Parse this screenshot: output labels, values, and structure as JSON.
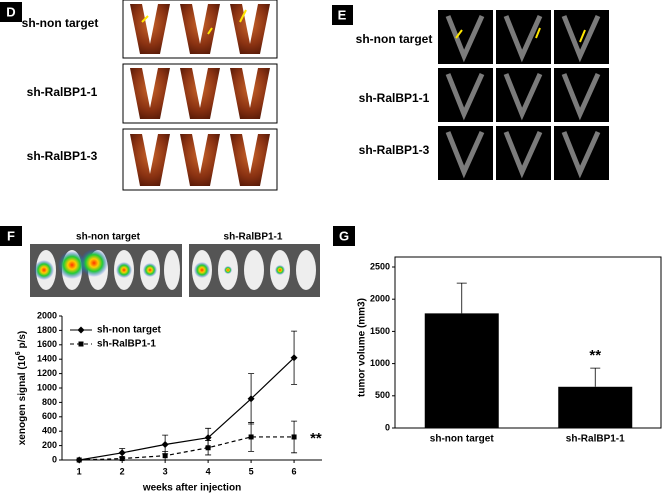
{
  "panels": {
    "D": {
      "label": "D",
      "rows": [
        "sh-non target",
        "sh-RalBP1-1",
        "sh-RalBP1-3"
      ]
    },
    "E": {
      "label": "E",
      "rows": [
        "sh-non target",
        "sh-RalBP1-1",
        "sh-RalBP1-3"
      ]
    },
    "F": {
      "label": "F",
      "groups": [
        "sh-non target",
        "sh-RalBP1-1"
      ]
    },
    "G": {
      "label": "G"
    }
  },
  "chart_data": [
    {
      "type": "line",
      "xlabel": "weeks after injection",
      "ylabel": [
        "xenogen signal (10",
        "6",
        " p/s)"
      ],
      "x": [
        1,
        2,
        3,
        4,
        5,
        6
      ],
      "xlim": [
        0.6,
        6.65
      ],
      "xticks": [
        1,
        2,
        3,
        4,
        5,
        6
      ],
      "ylim": [
        0,
        2000
      ],
      "yticks": [
        0,
        200,
        400,
        600,
        800,
        1000,
        1200,
        1400,
        1600,
        1800,
        2000
      ],
      "legend": "upper left",
      "annotation": "**",
      "series": [
        {
          "name": "sh-non target",
          "color": "#000000",
          "linestyle": "solid",
          "marker": "diamond",
          "values": [
            0,
            100,
            215,
            310,
            850,
            1420
          ],
          "errors": [
            0,
            60,
            130,
            130,
            350,
            370
          ]
        },
        {
          "name": "sh-RalBP1-1",
          "color": "#000000",
          "linestyle": "dashed",
          "marker": "square",
          "values": [
            0,
            20,
            60,
            170,
            320,
            320
          ],
          "errors": [
            0,
            20,
            60,
            100,
            200,
            220
          ]
        }
      ]
    },
    {
      "type": "bar",
      "ylabel": "tumor volume (mm3)",
      "categories": [
        "sh-non target",
        "sh-RalBP1-1"
      ],
      "values": [
        1780,
        640
      ],
      "errors": [
        470,
        290
      ],
      "color": "#000000",
      "ylim": [
        0,
        2500
      ],
      "yticks": [
        0,
        500,
        1000,
        1500,
        2000,
        2500
      ],
      "annotation": "**"
    }
  ]
}
